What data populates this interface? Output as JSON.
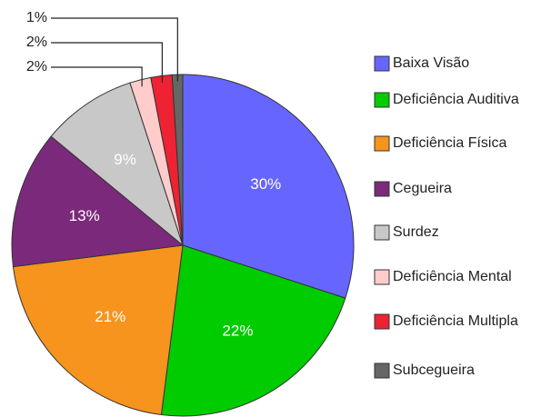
{
  "chart_data": {
    "type": "pie",
    "categories": [
      "Baixa Visão",
      "Deficiência Auditiva",
      "Deficiência Física",
      "Cegueira",
      "Surdez",
      "Deficiência Mental",
      "Deficiência Multipla",
      "Subcegueira"
    ],
    "values": [
      30,
      22,
      21,
      13,
      9,
      2,
      2,
      1
    ],
    "value_labels": [
      "30%",
      "22%",
      "21%",
      "13%",
      "9%",
      "2%",
      "2%",
      "1%"
    ],
    "colors": [
      "#6666ff",
      "#00cc00",
      "#f7941d",
      "#7b2a7b",
      "#c8c8c8",
      "#ffcccc",
      "#ee2233",
      "#666666"
    ],
    "legend": "right"
  }
}
